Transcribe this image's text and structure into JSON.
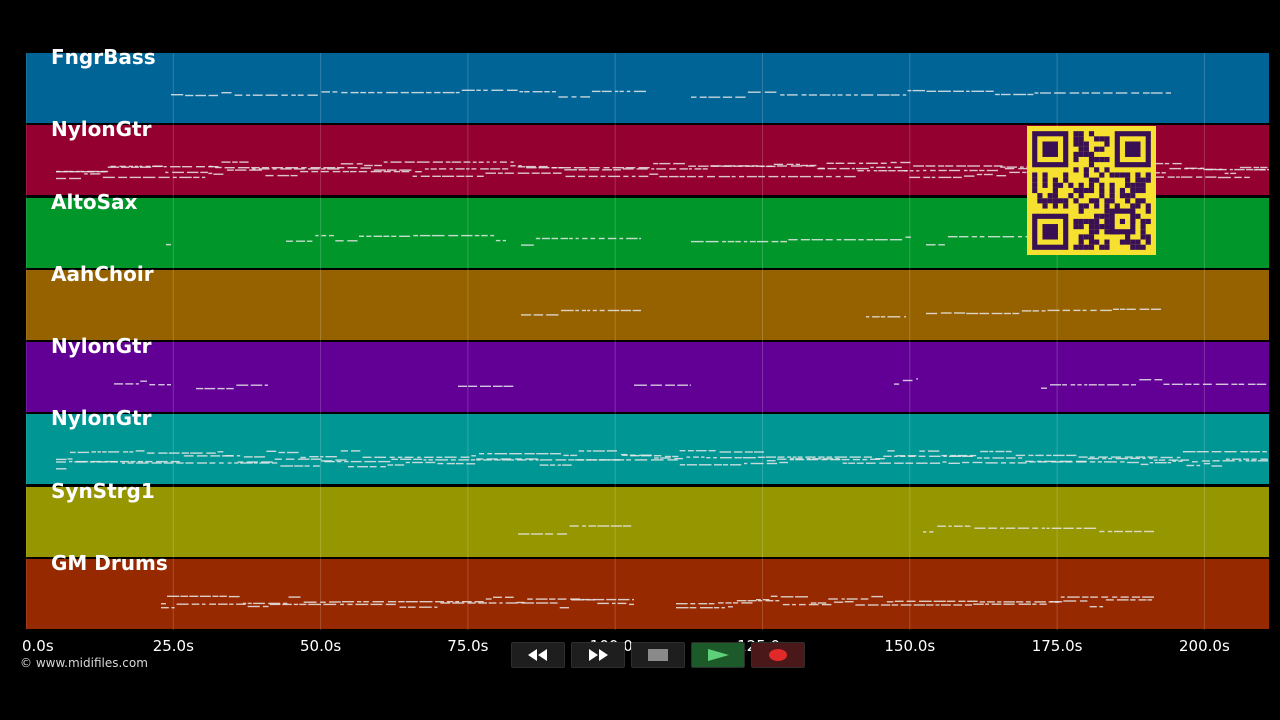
{
  "tracks": [
    {
      "label": "FngrBass",
      "color": "#006596"
    },
    {
      "label": "NylonGtr",
      "color": "#94002f"
    },
    {
      "label": "AltoSax",
      "color": "#00962a"
    },
    {
      "label": "AahChoir",
      "color": "#966200"
    },
    {
      "label": "NylonGtr",
      "color": "#620096"
    },
    {
      "label": "NylonGtr",
      "color": "#009694"
    },
    {
      "label": "SynStrg1",
      "color": "#969600"
    },
    {
      "label": "GM Drums",
      "color": "#962900"
    }
  ],
  "timeline": {
    "ticks": [
      "0.0s",
      "25.0s",
      "50.0s",
      "75.0s",
      "100.0s",
      "125.0s",
      "150.0s",
      "175.0s",
      "200.0s"
    ]
  },
  "footer": {
    "copyright": "© www.midifiles.com"
  },
  "transport": {
    "rewind_icon": "rewind-icon",
    "fast_forward_icon": "fast-forward-icon",
    "stop_icon": "stop-icon",
    "play_icon": "play-icon",
    "record_icon": "record-icon"
  },
  "colors": {
    "background": "#000000",
    "note": "#e8e8e8",
    "gridline": "#ffffff",
    "qr_background": "#f6e130",
    "qr_foreground": "#3a1054"
  }
}
